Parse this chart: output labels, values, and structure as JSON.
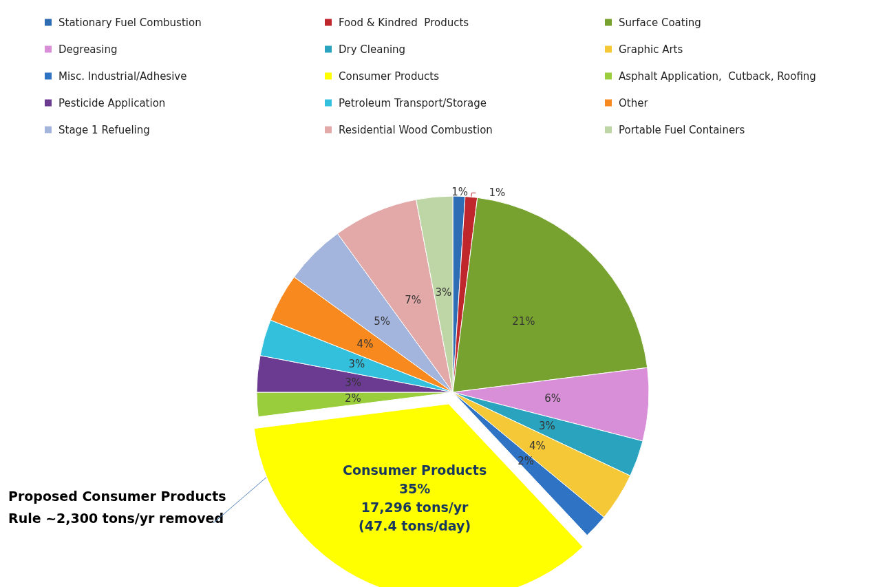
{
  "chart_data": {
    "type": "pie",
    "categories": [
      "Stationary Fuel Combustion",
      "Food & Kindred  Products",
      "Surface Coating",
      "Degreasing",
      "Dry Cleaning",
      "Graphic Arts",
      "Misc. Industrial/Adhesive",
      "Consumer Products",
      "Asphalt Application,  Cutback, Roofing",
      "Pesticide Application",
      "Petroleum Transport/Storage",
      "Other",
      "Stage 1 Refueling",
      "Residential Wood Combustion",
      "Portable Fuel Containers"
    ],
    "values": [
      1,
      1,
      21,
      6,
      3,
      4,
      2,
      35,
      2,
      3,
      3,
      4,
      5,
      7,
      3
    ],
    "colors": [
      "#2e6db4",
      "#c0272d",
      "#77a22f",
      "#d88fd8",
      "#2aa3bf",
      "#f5c838",
      "#2f73c4",
      "#ffff00",
      "#9acd3c",
      "#6b3a91",
      "#33c0dc",
      "#f7891f",
      "#a3b4dd",
      "#e3a8a8",
      "#bed5a5"
    ],
    "value_labels": [
      "1%",
      "1%",
      "21%",
      "6%",
      "3%",
      "4%",
      "2%",
      "35%",
      "2%",
      "3%",
      "3%",
      "4%",
      "5%",
      "7%",
      "3%"
    ],
    "legend": "top",
    "annotations": [
      {
        "text": "17,296 tons/yr",
        "x": "Consumer Products"
      },
      {
        "text": "(47.4 tons/day)",
        "x": "Consumer Products"
      },
      "Proposed Consumer Products Rule ~2,300 tons/yr removed"
    ]
  }
}
